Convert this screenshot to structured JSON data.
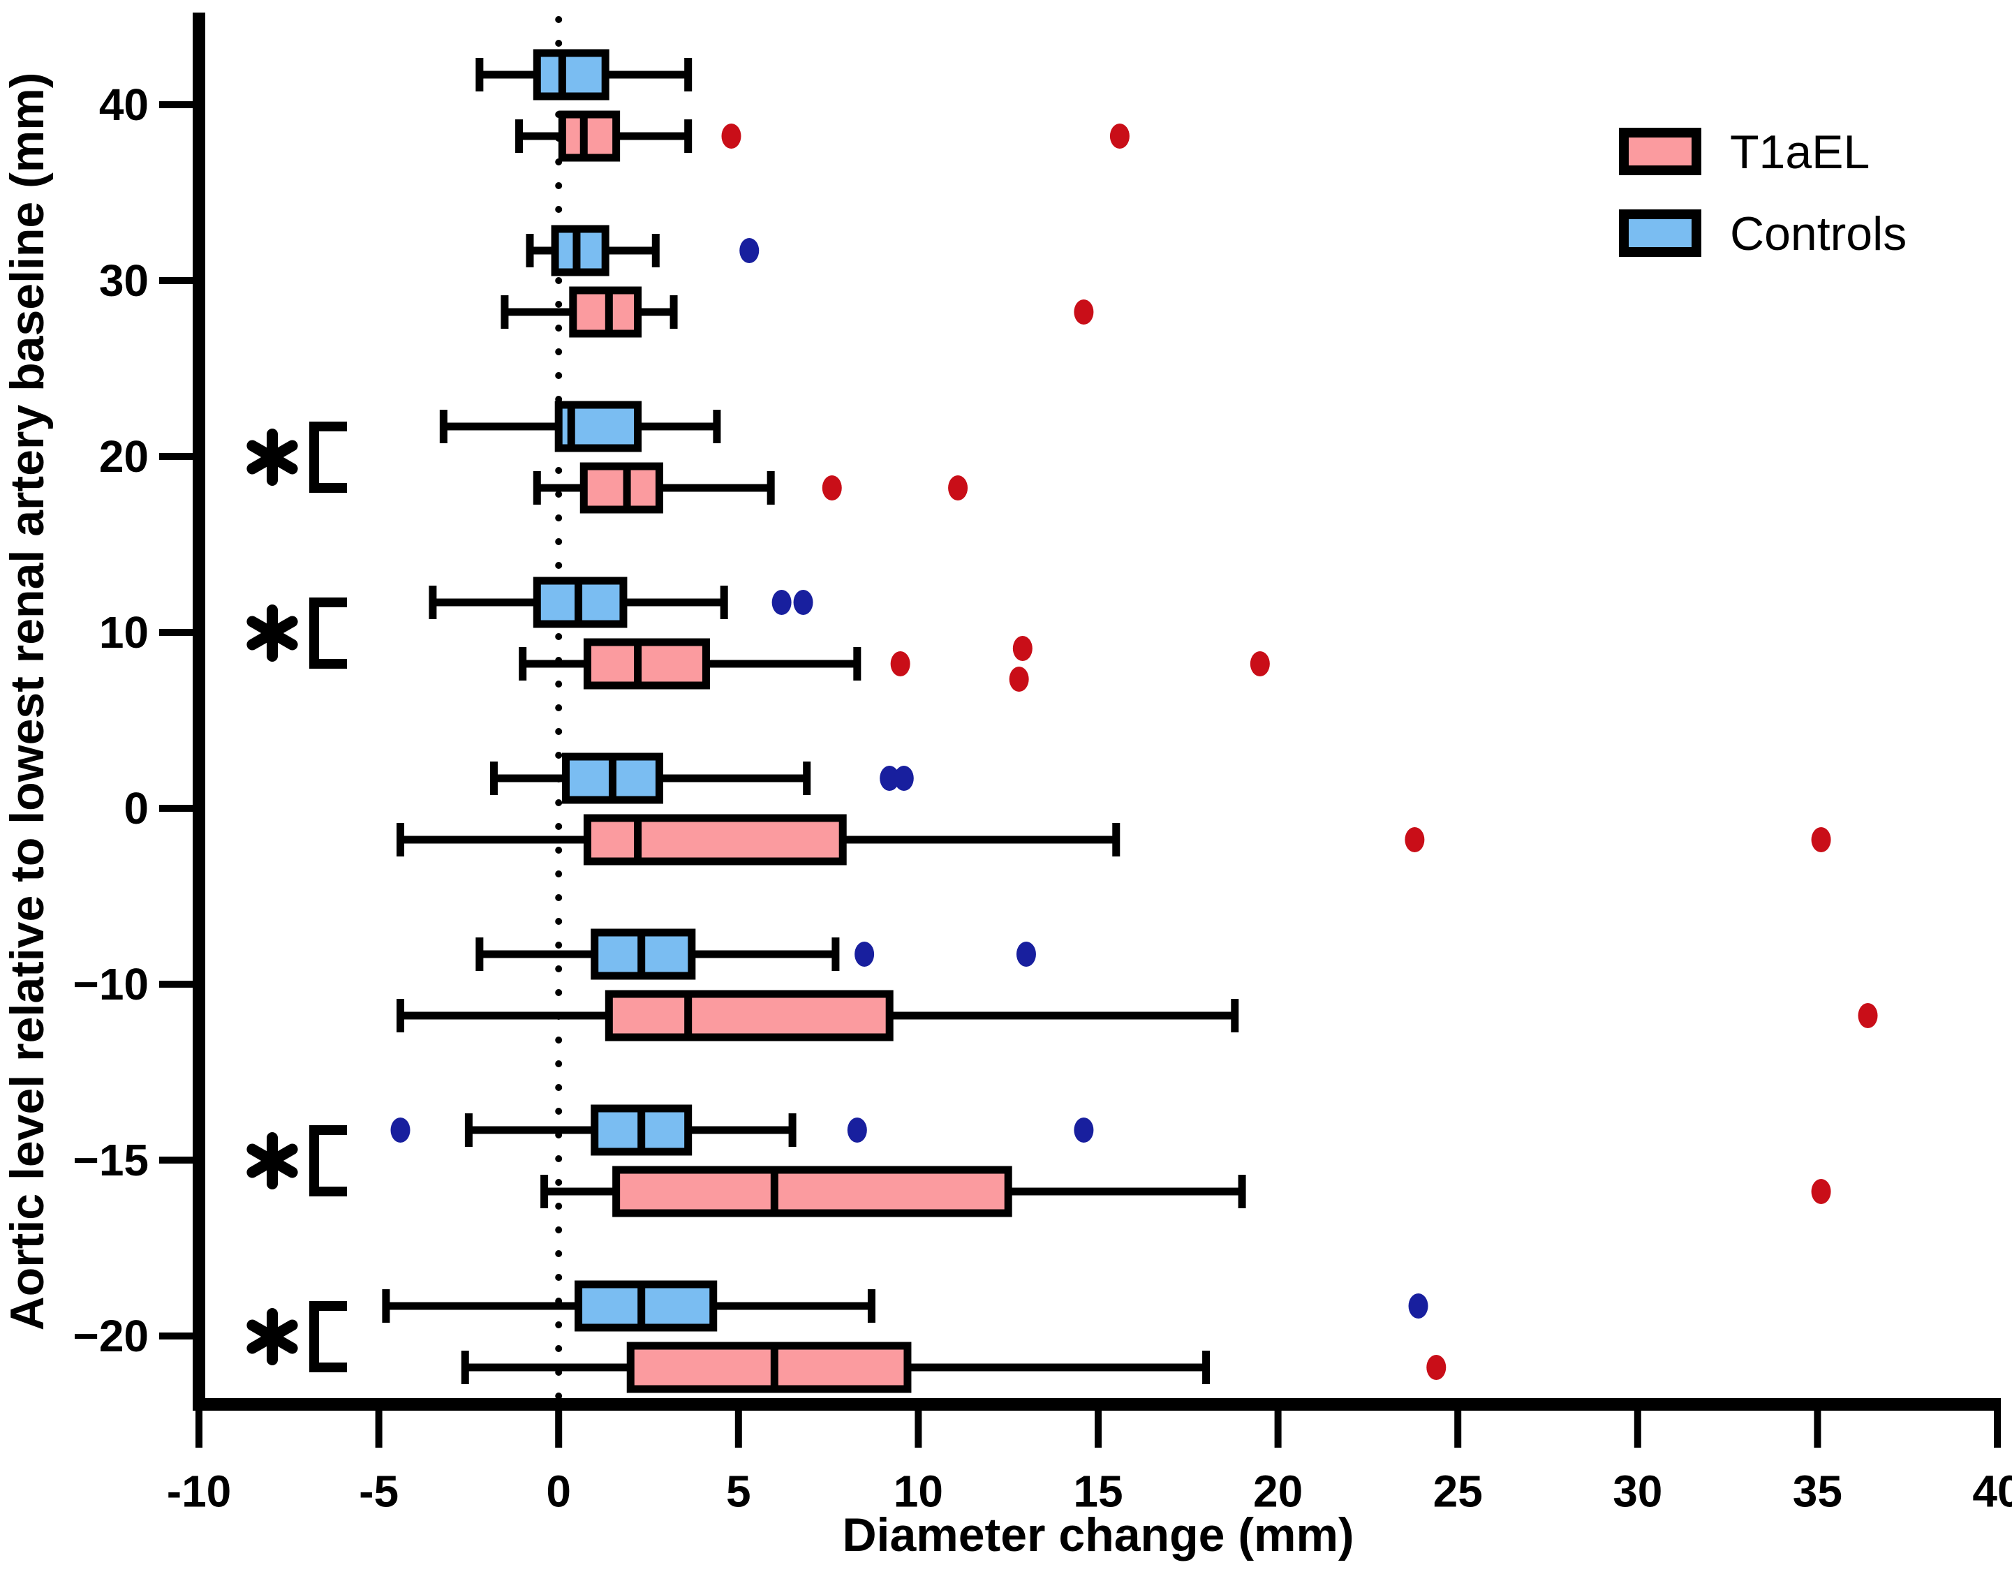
{
  "figure": {
    "xlabel": "Diameter change  (mm)",
    "ylabel": "Aortic level relative to lowest renal artery baseline (mm)"
  },
  "legend": {
    "items": [
      {
        "label": "T1aEL",
        "swatch_fill": "#FB9B9F",
        "swatch_border": "#000000"
      },
      {
        "label": "Controls",
        "swatch_fill": "#7ABDF2",
        "swatch_border": "#000000"
      }
    ]
  },
  "chart_data": {
    "type": "boxplot",
    "orientation": "horizontal",
    "title": "",
    "xlabel": "Diameter change  (mm)",
    "ylabel": "Aortic level relative to lowest renal artery baseline (mm)",
    "xlim": [
      -10,
      40
    ],
    "xticks": [
      -10,
      -5,
      0,
      5,
      10,
      15,
      20,
      25,
      30,
      35,
      40
    ],
    "xtick_labels": [
      "-10",
      "-5",
      "0",
      "5",
      "10",
      "15",
      "20",
      "25",
      "30",
      "35",
      "40"
    ],
    "categories": [
      "40",
      "30",
      "20",
      "10",
      "0",
      "−10",
      "−15",
      "−20"
    ],
    "zero_reference_line": 0,
    "grid": false,
    "legend_position": "top-right",
    "significant_levels": [
      "20",
      "10",
      "−15",
      "−20"
    ],
    "significance_symbol": "*",
    "series": [
      {
        "name": "T1aEL",
        "fill": "#FB9B9F",
        "outlier_color": "#C90E18",
        "boxes": [
          {
            "level": "40",
            "whislo": -1.1,
            "q1": 0.1,
            "med": 0.7,
            "q3": 1.6,
            "whishi": 3.6,
            "outliers": [
              4.8,
              15.6
            ]
          },
          {
            "level": "30",
            "whislo": -1.5,
            "q1": 0.4,
            "med": 1.4,
            "q3": 2.2,
            "whishi": 3.2,
            "outliers": [
              14.6
            ]
          },
          {
            "level": "20",
            "whislo": -0.6,
            "q1": 0.7,
            "med": 1.9,
            "q3": 2.8,
            "whishi": 5.9,
            "outliers": [
              7.6,
              11.1
            ]
          },
          {
            "level": "10",
            "whislo": -1.0,
            "q1": 0.8,
            "med": 2.2,
            "q3": 4.1,
            "whishi": 8.3,
            "outliers": [
              9.5,
              12.9,
              12.8,
              19.5
            ],
            "outlier_dy": [
              0,
              -22,
              22,
              0
            ]
          },
          {
            "level": "0",
            "whislo": -4.4,
            "q1": 0.8,
            "med": 2.2,
            "q3": 7.9,
            "whishi": 15.5,
            "outliers": [
              23.8,
              35.1
            ]
          },
          {
            "level": "−10",
            "whislo": -4.4,
            "q1": 1.4,
            "med": 3.6,
            "q3": 9.2,
            "whishi": 18.8,
            "outliers": [
              36.4
            ]
          },
          {
            "level": "−15",
            "whislo": -0.4,
            "q1": 1.6,
            "med": 6.0,
            "q3": 12.5,
            "whishi": 19.0,
            "outliers": [
              35.1
            ]
          },
          {
            "level": "−20",
            "whislo": -2.6,
            "q1": 2.0,
            "med": 6.0,
            "q3": 9.7,
            "whishi": 18.0,
            "outliers": [
              24.4
            ]
          }
        ]
      },
      {
        "name": "Controls",
        "fill": "#7ABDF2",
        "outlier_color": "#181F9E",
        "boxes": [
          {
            "level": "40",
            "whislo": -2.2,
            "q1": -0.6,
            "med": 0.1,
            "q3": 1.3,
            "whishi": 3.6,
            "outliers": []
          },
          {
            "level": "30",
            "whislo": -0.8,
            "q1": -0.1,
            "med": 0.5,
            "q3": 1.3,
            "whishi": 2.7,
            "outliers": [
              5.3
            ]
          },
          {
            "level": "20",
            "whislo": -3.2,
            "q1": 0.0,
            "med": 0.35,
            "q3": 2.2,
            "whishi": 4.4,
            "outliers": []
          },
          {
            "level": "10",
            "whislo": -3.5,
            "q1": -0.6,
            "med": 0.55,
            "q3": 1.8,
            "whishi": 4.6,
            "outliers": [
              6.2,
              6.8
            ]
          },
          {
            "level": "0",
            "whislo": -1.8,
            "q1": 0.2,
            "med": 1.5,
            "q3": 2.8,
            "whishi": 6.9,
            "outliers": [
              9.2,
              9.6
            ]
          },
          {
            "level": "−10",
            "whislo": -2.2,
            "q1": 1.0,
            "med": 2.3,
            "q3": 3.7,
            "whishi": 7.7,
            "outliers": [
              8.5,
              13.0
            ]
          },
          {
            "level": "−15",
            "whislo": -2.5,
            "q1": 1.0,
            "med": 2.3,
            "q3": 3.6,
            "whishi": 6.5,
            "outliers": [
              -4.4,
              8.3,
              14.6
            ]
          },
          {
            "level": "−20",
            "whislo": -4.8,
            "q1": 0.55,
            "med": 2.3,
            "q3": 4.3,
            "whishi": 8.7,
            "outliers": [
              23.9
            ]
          }
        ]
      }
    ]
  }
}
